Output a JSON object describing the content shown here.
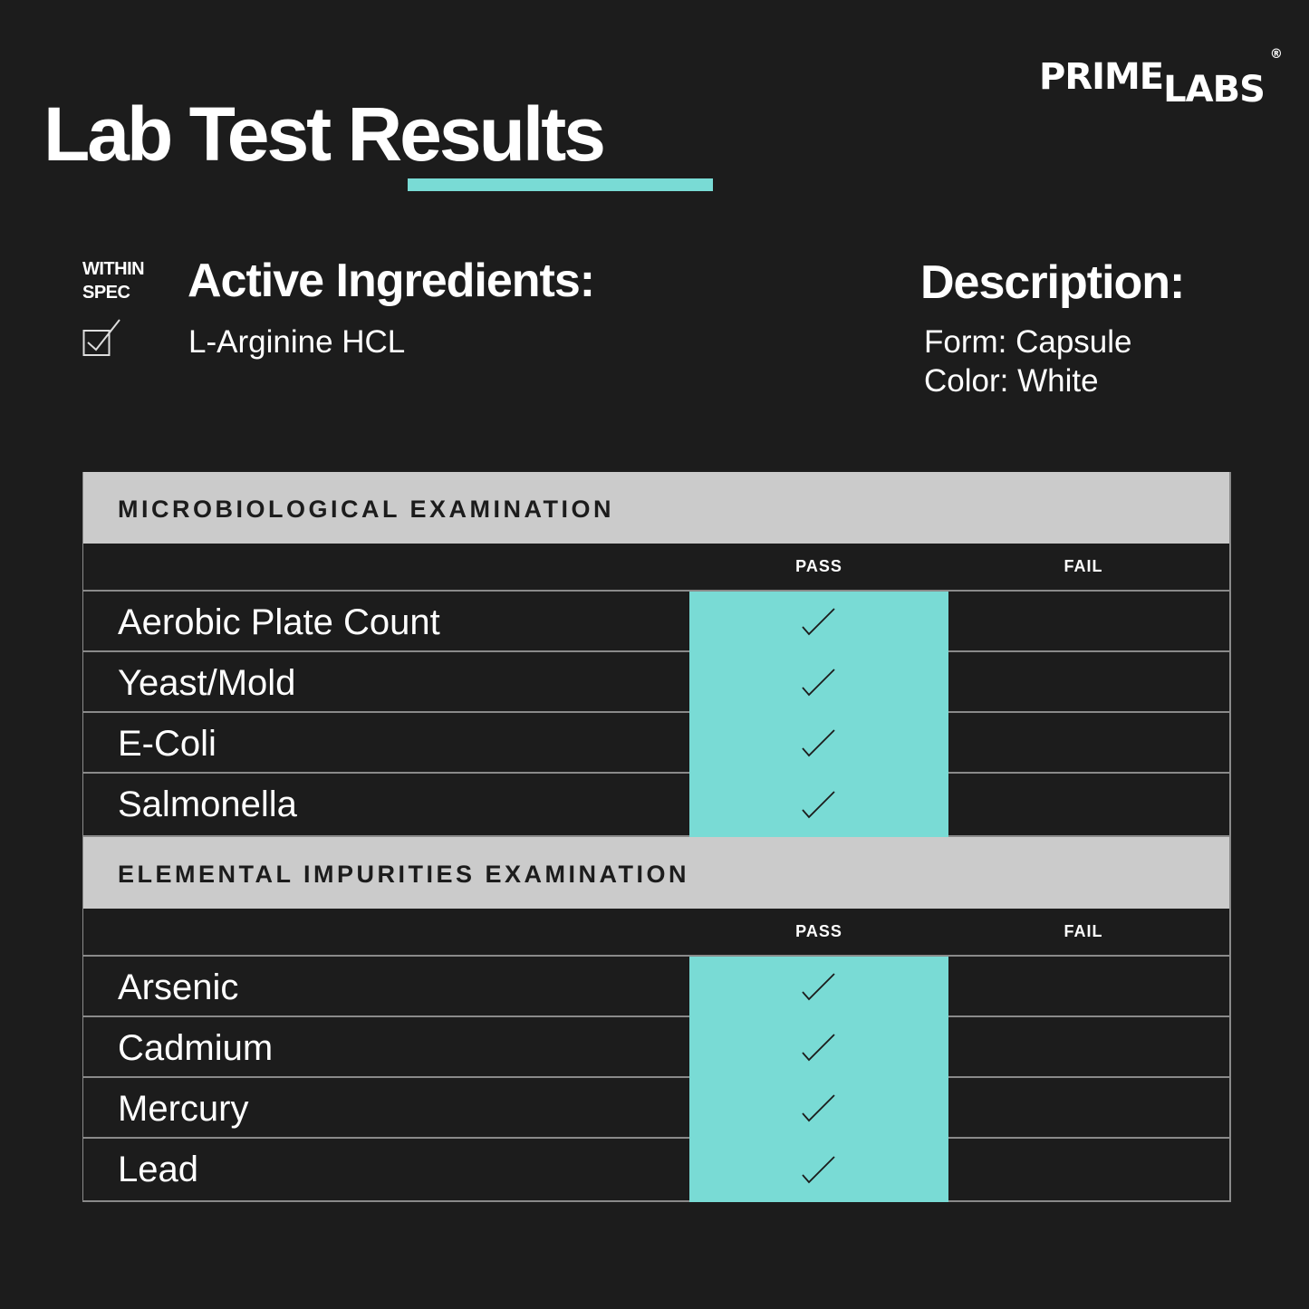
{
  "title": "Lab Test Results",
  "brand": {
    "part1": "PRIME",
    "part2": "LABS",
    "mark": "®"
  },
  "spec": {
    "line1": "WITHIN",
    "line2": "SPEC",
    "icon": "checkbox-checked-icon"
  },
  "active_ingredients": {
    "title": "Active Ingredients:",
    "items": [
      "L-Arginine HCL"
    ]
  },
  "description": {
    "title": "Description:",
    "form": "Form: Capsule",
    "color": "Color: White"
  },
  "colors": {
    "accent": "#79dbd5",
    "background": "#1c1c1c",
    "section_header": "#cbcbcb"
  },
  "sections": [
    {
      "title": "MICROBIOLOGICAL EXAMINATION",
      "pass_label": "PASS",
      "fail_label": "FAIL",
      "rows": [
        {
          "name": "Aerobic Plate Count",
          "result": "pass"
        },
        {
          "name": "Yeast/Mold",
          "result": "pass"
        },
        {
          "name": "E-Coli",
          "result": "pass"
        },
        {
          "name": "Salmonella",
          "result": "pass"
        }
      ]
    },
    {
      "title": "ELEMENTAL IMPURITIES EXAMINATION",
      "pass_label": "PASS",
      "fail_label": "FAIL",
      "rows": [
        {
          "name": "Arsenic",
          "result": "pass"
        },
        {
          "name": "Cadmium",
          "result": "pass"
        },
        {
          "name": "Mercury",
          "result": "pass"
        },
        {
          "name": "Lead",
          "result": "pass"
        }
      ]
    }
  ]
}
